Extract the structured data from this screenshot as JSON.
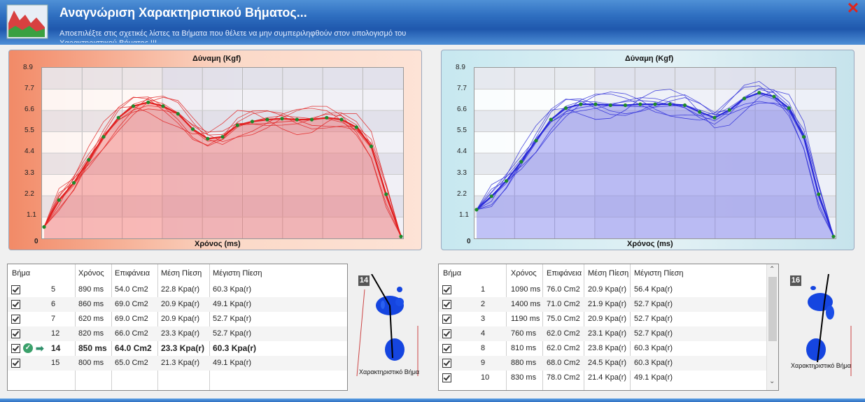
{
  "window": {
    "title": "Αναγνώριση Χαρακτηριστικού Βήματος...",
    "subtitle": "Αποεπιλέξτε στις σχετικές λίστες τα Βήματα που θέλετε να μην συμπεριληφθούν στον υπολογισμό του Χαρακτηριστικού Βήματος !!!",
    "close_icon": "close-icon"
  },
  "left_chart": {
    "title": "Δύναμη (Kgf)",
    "xlabel": "Χρόνος (ms)",
    "origin": "0",
    "yticks": [
      "8.9",
      "7.7",
      "6.6",
      "5.5",
      "4.4",
      "3.3",
      "2.2",
      "1.1"
    ]
  },
  "right_chart": {
    "title": "Δύναμη (Kgf)",
    "xlabel": "Χρόνος (ms)",
    "origin": "0",
    "yticks": [
      "8.9",
      "7.7",
      "6.6",
      "5.5",
      "4.4",
      "3.3",
      "2.2",
      "1.1"
    ]
  },
  "chart_data": [
    {
      "type": "line",
      "title": "Δύναμη (Kgf)",
      "xlabel": "Χρόνος (ms)",
      "ylabel": "Δύναμη (Kgf)",
      "ylim": [
        0,
        8.9
      ],
      "series_color": "#e02020",
      "characteristic": [
        0.6,
        2.0,
        2.9,
        4.1,
        5.3,
        6.3,
        6.9,
        7.1,
        6.9,
        6.5,
        5.7,
        5.2,
        5.3,
        5.9,
        6.1,
        6.2,
        6.25,
        6.2,
        6.2,
        6.3,
        6.2,
        5.8,
        4.8,
        2.3,
        0.1
      ]
    },
    {
      "type": "line",
      "title": "Δύναμη (Kgf)",
      "xlabel": "Χρόνος (ms)",
      "ylabel": "Δύναμη (Kgf)",
      "ylim": [
        0,
        8.9
      ],
      "series_color": "#2a2ad8",
      "characteristic": [
        1.5,
        2.2,
        3.0,
        4.0,
        5.1,
        6.2,
        6.8,
        7.0,
        7.0,
        6.95,
        6.95,
        7.0,
        7.0,
        7.0,
        6.95,
        6.6,
        6.3,
        6.7,
        7.3,
        7.6,
        7.4,
        6.8,
        5.3,
        2.3,
        0.1
      ]
    }
  ],
  "left_table": {
    "headers": [
      "Βήμα",
      "Χρόνος",
      "Επιφάνεια",
      "Μέση Πίεση",
      "Μέγιστη Πίεση"
    ],
    "rows": [
      {
        "step": "5",
        "time": "890 ms",
        "area": "54.0 Cm2",
        "mean": "22.8 Kpa(r)",
        "max": "60.3 Kpa(r)"
      },
      {
        "step": "6",
        "time": "860 ms",
        "area": "69.0 Cm2",
        "mean": "20.9 Kpa(r)",
        "max": "49.1 Kpa(r)"
      },
      {
        "step": "7",
        "time": "620 ms",
        "area": "69.0 Cm2",
        "mean": "20.9 Kpa(r)",
        "max": "52.7 Kpa(r)"
      },
      {
        "step": "12",
        "time": "820 ms",
        "area": "66.0 Cm2",
        "mean": "23.3 Kpa(r)",
        "max": "52.7 Kpa(r)"
      },
      {
        "step": "14",
        "time": "850 ms",
        "area": "64.0 Cm2",
        "mean": "23.3 Kpa(r)",
        "max": "60.3 Kpa(r)"
      },
      {
        "step": "15",
        "time": "800 ms",
        "area": "65.0 Cm2",
        "mean": "21.3 Kpa(r)",
        "max": "49.1 Kpa(r)"
      }
    ]
  },
  "right_table": {
    "headers": [
      "Βήμα",
      "Χρόνος",
      "Επιφάνεια",
      "Μέση Πίεση",
      "Μέγιστη Πίεση"
    ],
    "rows": [
      {
        "step": "1",
        "time": "1090 ms",
        "area": "76.0 Cm2",
        "mean": "20.9 Kpa(r)",
        "max": "56.4 Kpa(r)"
      },
      {
        "step": "2",
        "time": "1400 ms",
        "area": "71.0 Cm2",
        "mean": "21.9 Kpa(r)",
        "max": "52.7 Kpa(r)"
      },
      {
        "step": "3",
        "time": "1190 ms",
        "area": "75.0 Cm2",
        "mean": "20.9 Kpa(r)",
        "max": "52.7 Kpa(r)"
      },
      {
        "step": "4",
        "time": "760 ms",
        "area": "62.0 Cm2",
        "mean": "23.1 Kpa(r)",
        "max": "52.7 Kpa(r)"
      },
      {
        "step": "8",
        "time": "810 ms",
        "area": "62.0 Cm2",
        "mean": "23.8 Kpa(r)",
        "max": "60.3 Kpa(r)"
      },
      {
        "step": "9",
        "time": "880 ms",
        "area": "68.0 Cm2",
        "mean": "24.5 Kpa(r)",
        "max": "60.3 Kpa(r)"
      },
      {
        "step": "10",
        "time": "830 ms",
        "area": "78.0 Cm2",
        "mean": "21.4 Kpa(r)",
        "max": "49.1 Kpa(r)"
      }
    ]
  },
  "left_foot": {
    "badge": "14",
    "label": "Χαρακτηριστικό Βήμα"
  },
  "right_foot": {
    "badge": "16",
    "label": "Χαρακτηριστικό Βήμα"
  }
}
